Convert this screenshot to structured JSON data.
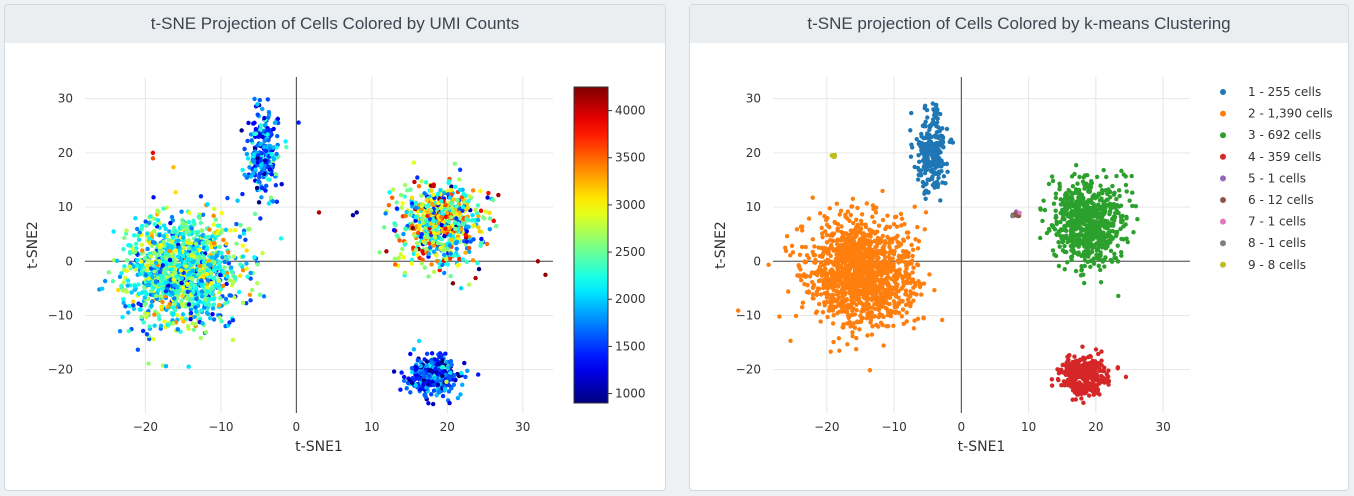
{
  "chart_data": [
    {
      "type": "scatter",
      "title": "t-SNE Projection of Cells Colored by UMI Counts",
      "xlabel": "t-SNE1",
      "ylabel": "t-SNE2",
      "xlim": [
        -28,
        34
      ],
      "ylim": [
        -28,
        34
      ],
      "xticks": [
        -20,
        -10,
        0,
        10,
        20,
        30
      ],
      "yticks": [
        -20,
        -10,
        0,
        10,
        20,
        30
      ],
      "grid": true,
      "colorbar": {
        "colormap": "jet",
        "range": [
          900,
          4250
        ],
        "ticks": [
          1000,
          1500,
          2000,
          2500,
          3000,
          3500,
          4000
        ]
      },
      "clusters": [
        {
          "region": "top-left arm",
          "center": [
            -4.5,
            20
          ],
          "spread": [
            2,
            7
          ],
          "count": 255,
          "umi_typical": 1700,
          "umi_range": [
            900,
            2600
          ]
        },
        {
          "region": "large left mass",
          "center": [
            -15,
            -2
          ],
          "spread": [
            7,
            9
          ],
          "count": 1390,
          "umi_typical": 2300,
          "umi_range": [
            1200,
            3400
          ]
        },
        {
          "region": "right arm",
          "center": [
            19,
            7
          ],
          "spread": [
            5,
            7
          ],
          "count": 692,
          "umi_typical": 2600,
          "umi_range": [
            900,
            4250
          ]
        },
        {
          "region": "bottom-right blob",
          "center": [
            18,
            -21
          ],
          "spread": [
            3,
            3.5
          ],
          "count": 359,
          "umi_typical": 1500,
          "umi_range": [
            900,
            2800
          ]
        }
      ],
      "notable_points": [
        {
          "x": 3,
          "y": 9,
          "umi": 4100
        },
        {
          "x": 7.5,
          "y": 8.5,
          "umi": 1000
        },
        {
          "x": 8,
          "y": 9,
          "umi": 1000
        },
        {
          "x": -19,
          "y": 20,
          "umi": 3900
        },
        {
          "x": -19,
          "y": 19,
          "umi": 3600
        },
        {
          "x": 33,
          "y": -2.5,
          "umi": 4200
        },
        {
          "x": 32,
          "y": 0,
          "umi": 4150
        }
      ]
    },
    {
      "type": "scatter",
      "title": "t-SNE projection of Cells Colored by k-means Clustering",
      "xlabel": "t-SNE1",
      "ylabel": "t-SNE2",
      "xlim": [
        -28,
        34
      ],
      "ylim": [
        -28,
        34
      ],
      "xticks": [
        -20,
        -10,
        0,
        10,
        20,
        30
      ],
      "yticks": [
        -20,
        -10,
        0,
        10,
        20,
        30
      ],
      "grid": true,
      "legend_position": "right",
      "series": [
        {
          "name": "1 - 255 cells",
          "color": "#1f77b4",
          "count": 255,
          "center": [
            -4.5,
            20
          ],
          "spread": [
            2,
            7
          ]
        },
        {
          "name": "2 - 1,390 cells",
          "color": "#ff7f0e",
          "count": 1390,
          "center": [
            -15,
            -2
          ],
          "spread": [
            7,
            9
          ]
        },
        {
          "name": "3 - 692 cells",
          "color": "#2ca02c",
          "count": 692,
          "center": [
            19,
            7
          ],
          "spread": [
            5,
            7
          ]
        },
        {
          "name": "4 - 359 cells",
          "color": "#d62728",
          "count": 359,
          "center": [
            18,
            -21
          ],
          "spread": [
            3,
            3.5
          ]
        },
        {
          "name": "5 - 1 cells",
          "color": "#9467bd",
          "count": 1,
          "center": [
            8,
            9
          ]
        },
        {
          "name": "6 - 12 cells",
          "color": "#8c564b",
          "count": 12,
          "center": [
            8,
            8.5
          ]
        },
        {
          "name": "7 - 1 cells",
          "color": "#e377c2",
          "count": 1,
          "center": [
            9,
            9
          ]
        },
        {
          "name": "8 - 1 cells",
          "color": "#7f7f7f",
          "count": 1,
          "center": [
            7.5,
            8
          ]
        },
        {
          "name": "9 - 8 cells",
          "color": "#bcbd22",
          "count": 8,
          "center": [
            -19,
            19.5
          ]
        }
      ]
    }
  ]
}
